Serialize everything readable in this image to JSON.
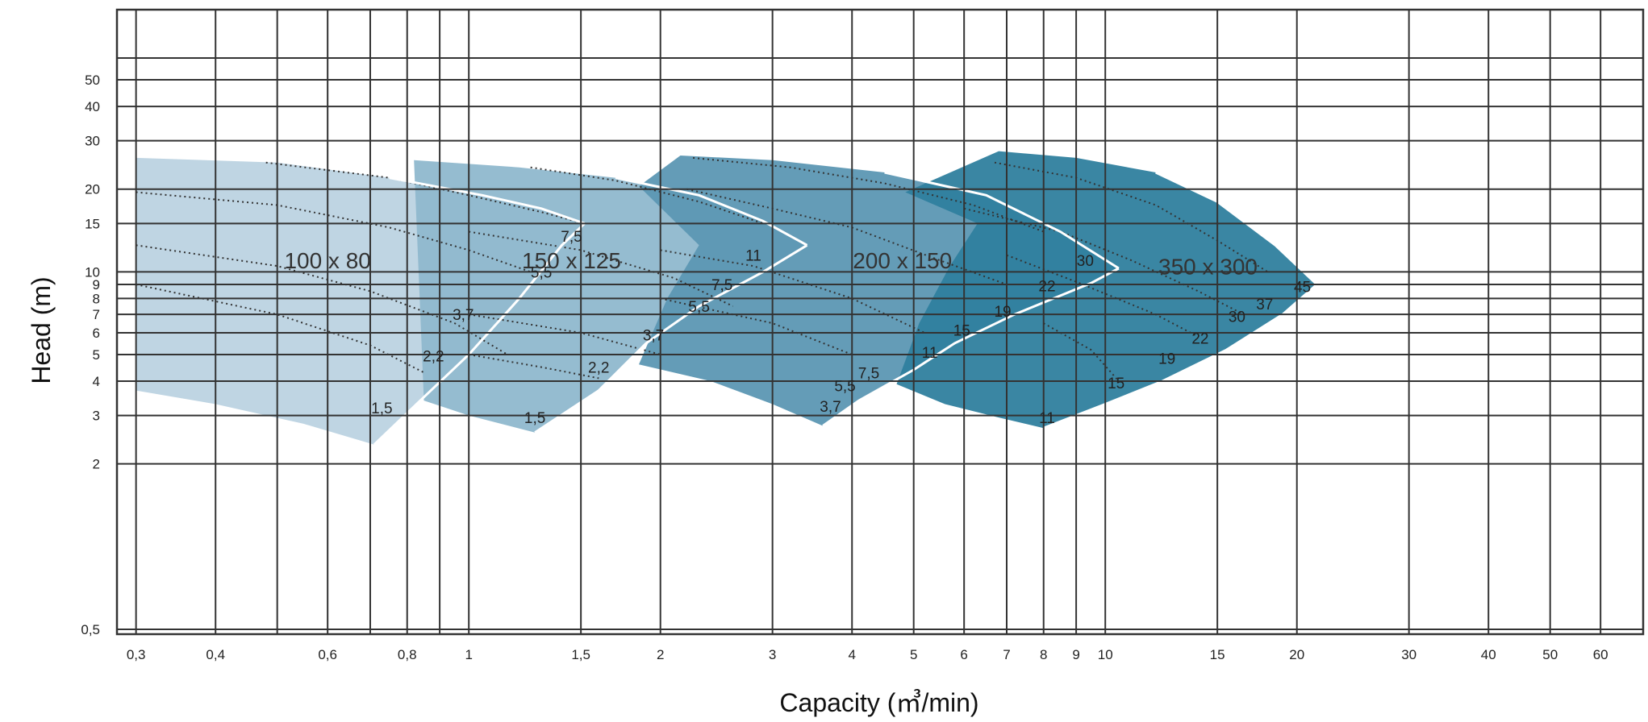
{
  "chart_data": {
    "type": "area",
    "title": "",
    "xlabel": "Capacity (㎥/min)",
    "ylabel": "Head (m)",
    "x_scale": "log",
    "y_scale": "log",
    "xlim": [
      0.28,
      70
    ],
    "ylim": [
      0.48,
      90
    ],
    "grid": true,
    "x_ticks": [
      {
        "value": 0.3,
        "label": "0,3"
      },
      {
        "value": 0.4,
        "label": "0,4"
      },
      {
        "value": 0.5,
        "label": ""
      },
      {
        "value": 0.6,
        "label": "0,6"
      },
      {
        "value": 0.7,
        "label": ""
      },
      {
        "value": 0.8,
        "label": "0,8"
      },
      {
        "value": 0.9,
        "label": ""
      },
      {
        "value": 1,
        "label": "1"
      },
      {
        "value": 1.5,
        "label": "1,5"
      },
      {
        "value": 2,
        "label": "2"
      },
      {
        "value": 3,
        "label": "3"
      },
      {
        "value": 4,
        "label": "4"
      },
      {
        "value": 5,
        "label": "5"
      },
      {
        "value": 6,
        "label": "6"
      },
      {
        "value": 7,
        "label": "7"
      },
      {
        "value": 8,
        "label": "8"
      },
      {
        "value": 9,
        "label": "9"
      },
      {
        "value": 10,
        "label": "10"
      },
      {
        "value": 15,
        "label": "15"
      },
      {
        "value": 20,
        "label": "20"
      },
      {
        "value": 30,
        "label": "30"
      },
      {
        "value": 40,
        "label": "40"
      },
      {
        "value": 50,
        "label": "50"
      },
      {
        "value": 60,
        "label": "60"
      }
    ],
    "y_ticks": [
      {
        "value": 0.5,
        "label": "0,5"
      },
      {
        "value": 2,
        "label": "2"
      },
      {
        "value": 3,
        "label": "3"
      },
      {
        "value": 4,
        "label": "4"
      },
      {
        "value": 5,
        "label": "5"
      },
      {
        "value": 6,
        "label": "6"
      },
      {
        "value": 7,
        "label": "7"
      },
      {
        "value": 8,
        "label": "8"
      },
      {
        "value": 9,
        "label": "9"
      },
      {
        "value": 10,
        "label": "10"
      },
      {
        "value": 15,
        "label": "15"
      },
      {
        "value": 20,
        "label": "20"
      },
      {
        "value": 30,
        "label": "30"
      },
      {
        "value": 40,
        "label": "40"
      },
      {
        "value": 50,
        "label": "50"
      },
      {
        "value": 60,
        "label": ""
      }
    ],
    "series": [
      {
        "name": "100 x 80",
        "color": "#bcd3e1",
        "label_at": [
          0.6,
          10.3
        ],
        "outline": [
          [
            0.3,
            26
          ],
          [
            0.5,
            25
          ],
          [
            0.75,
            22
          ],
          [
            1.05,
            19
          ],
          [
            1.3,
            17
          ],
          [
            1.52,
            15
          ],
          [
            1.4,
            12.5
          ],
          [
            1.2,
            8
          ],
          [
            1.0,
            5
          ],
          [
            0.85,
            3.5
          ],
          [
            0.71,
            2.35
          ],
          [
            0.55,
            2.8
          ],
          [
            0.4,
            3.3
          ],
          [
            0.3,
            3.7
          ]
        ],
        "curves": [
          {
            "points": [
              [
                0.48,
                25
              ],
              [
                0.75,
                22
              ],
              [
                1.0,
                19
              ],
              [
                1.3,
                16.5
              ],
              [
                1.52,
                15
              ]
            ]
          },
          {
            "points": [
              [
                0.3,
                19.5
              ],
              [
                0.5,
                17.5
              ],
              [
                0.75,
                14.5
              ],
              [
                1.0,
                12
              ],
              [
                1.25,
                10
              ]
            ]
          },
          {
            "points": [
              [
                0.3,
                12.5
              ],
              [
                0.5,
                10.5
              ],
              [
                0.7,
                8.5
              ],
              [
                0.95,
                6.5
              ],
              [
                1.15,
                5
              ]
            ]
          },
          {
            "points": [
              [
                0.3,
                9
              ],
              [
                0.5,
                7
              ],
              [
                0.7,
                5.4
              ],
              [
                0.85,
                4.3
              ]
            ]
          }
        ],
        "power_labels": [
          {
            "text": "7,5",
            "at": [
              1.45,
              13.5
            ]
          },
          {
            "text": "5,5",
            "at": [
              1.3,
              10
            ]
          },
          {
            "text": "3,7",
            "at": [
              0.98,
              7
            ]
          },
          {
            "text": "2,2",
            "at": [
              0.88,
              4.95
            ]
          },
          {
            "text": "1,5",
            "at": [
              0.73,
              3.2
            ]
          }
        ]
      },
      {
        "name": "150 x 125",
        "color": "#8fb8cd",
        "label_at": [
          1.45,
          10.3
        ],
        "outline": [
          [
            0.82,
            25.5
          ],
          [
            1.2,
            24
          ],
          [
            1.7,
            22
          ],
          [
            2.3,
            19
          ],
          [
            2.9,
            15.3
          ],
          [
            3.4,
            12.5
          ],
          [
            2.9,
            10
          ],
          [
            2.3,
            7.5
          ],
          [
            1.9,
            5.5
          ],
          [
            1.6,
            3.7
          ],
          [
            1.27,
            2.6
          ],
          [
            1.0,
            3
          ],
          [
            0.85,
            3.4
          ]
        ],
        "curves": [
          {
            "points": [
              [
                1.25,
                24
              ],
              [
                1.7,
                21.5
              ],
              [
                2.3,
                18
              ],
              [
                2.9,
                15
              ]
            ]
          },
          {
            "points": [
              [
                1.0,
                14
              ],
              [
                1.5,
                12
              ],
              [
                2.1,
                9.5
              ],
              [
                2.6,
                7.5
              ]
            ]
          },
          {
            "points": [
              [
                1.0,
                7
              ],
              [
                1.5,
                6
              ],
              [
                2.0,
                5
              ]
            ]
          },
          {
            "points": [
              [
                1.0,
                5
              ],
              [
                1.3,
                4.5
              ],
              [
                1.6,
                4.1
              ]
            ]
          }
        ],
        "power_labels": [
          {
            "text": "11",
            "at": [
              2.8,
              11.5
            ]
          },
          {
            "text": "7,5",
            "at": [
              2.5,
              9
            ]
          },
          {
            "text": "5,5",
            "at": [
              2.3,
              7.5
            ]
          },
          {
            "text": "3,7",
            "at": [
              1.95,
              5.9
            ]
          },
          {
            "text": "2,2",
            "at": [
              1.6,
              4.5
            ]
          },
          {
            "text": "1,5",
            "at": [
              1.27,
              2.95
            ]
          }
        ]
      },
      {
        "name": "200 x 150",
        "color": "#5c97b3",
        "label_at": [
          4.8,
          10.3
        ],
        "outline": [
          [
            2.15,
            26.5
          ],
          [
            3.0,
            25.5
          ],
          [
            4.5,
            23
          ],
          [
            6.5,
            19
          ],
          [
            8.5,
            14
          ],
          [
            10.5,
            10.3
          ],
          [
            9.5,
            9.1
          ],
          [
            7.2,
            7
          ],
          [
            5.8,
            5.5
          ],
          [
            5.0,
            4.4
          ],
          [
            4.1,
            3.4
          ],
          [
            3.6,
            2.75
          ],
          [
            3.0,
            3.3
          ],
          [
            2.4,
            4
          ],
          [
            1.85,
            4.6
          ],
          [
            2.05,
            8
          ],
          [
            2.3,
            12.5
          ],
          [
            1.85,
            20.5
          ]
        ],
        "curves": [
          {
            "points": [
              [
                2.25,
                26
              ],
              [
                3.2,
                24
              ],
              [
                4.5,
                21
              ],
              [
                6.2,
                17.5
              ],
              [
                8.0,
                14
              ]
            ]
          },
          {
            "points": [
              [
                2.2,
                20
              ],
              [
                3.0,
                17
              ],
              [
                4.0,
                14.5
              ],
              [
                5.5,
                11
              ],
              [
                7.0,
                9
              ]
            ]
          },
          {
            "points": [
              [
                2.0,
                12
              ],
              [
                2.8,
                10.5
              ],
              [
                4.0,
                8
              ],
              [
                5.2,
                6
              ]
            ]
          },
          {
            "points": [
              [
                2.0,
                8
              ],
              [
                3.0,
                6.5
              ],
              [
                4.0,
                5
              ]
            ]
          }
        ],
        "power_labels": [
          {
            "text": "30",
            "at": [
              9.3,
              11
            ]
          },
          {
            "text": "22",
            "at": [
              8.1,
              8.9
            ]
          },
          {
            "text": "19",
            "at": [
              6.9,
              7.2
            ]
          },
          {
            "text": "15",
            "at": [
              5.95,
              6.15
            ]
          },
          {
            "text": "11",
            "at": [
              5.3,
              5.1
            ]
          },
          {
            "text": "7,5",
            "at": [
              4.25,
              4.3
            ]
          },
          {
            "text": "5,5",
            "at": [
              3.9,
              3.85
            ]
          },
          {
            "text": "3,7",
            "at": [
              3.7,
              3.25
            ]
          }
        ]
      },
      {
        "name": "350 x 300",
        "color": "#2f7f9e",
        "label_at": [
          14.5,
          9.8
        ],
        "outline": [
          [
            6.8,
            27.5
          ],
          [
            9.0,
            26
          ],
          [
            12,
            23
          ],
          [
            15,
            18
          ],
          [
            18.5,
            12.5
          ],
          [
            21.5,
            9
          ],
          [
            19,
            7
          ],
          [
            15.5,
            5.2
          ],
          [
            12.3,
            4
          ],
          [
            10,
            3.3
          ],
          [
            8.0,
            2.7
          ],
          [
            6.8,
            2.95
          ],
          [
            5.6,
            3.3
          ],
          [
            4.7,
            3.9
          ],
          [
            5.1,
            6.5
          ],
          [
            5.7,
            10.5
          ],
          [
            6.3,
            15
          ],
          [
            4.85,
            19.5
          ]
        ],
        "curves": [
          {
            "points": [
              [
                6.7,
                25
              ],
              [
                9.0,
                22
              ],
              [
                12,
                17.5
              ],
              [
                15,
                13
              ],
              [
                18,
                10
              ]
            ]
          },
          {
            "points": [
              [
                6.0,
                17
              ],
              [
                8.5,
                14
              ],
              [
                11,
                11
              ],
              [
                14,
                8.5
              ],
              [
                16.5,
                7
              ]
            ]
          },
          {
            "points": [
              [
                7.0,
                11.5
              ],
              [
                9.0,
                9.2
              ],
              [
                12,
                7
              ],
              [
                14,
                5.8
              ]
            ]
          },
          {
            "points": [
              [
                8.0,
                6.5
              ],
              [
                9.5,
                5.2
              ],
              [
                10.5,
                4
              ]
            ]
          }
        ],
        "power_labels": [
          {
            "text": "45",
            "at": [
              20.4,
              8.85
            ]
          },
          {
            "text": "37",
            "at": [
              17.8,
              7.65
            ]
          },
          {
            "text": "30",
            "at": [
              16.1,
              6.9
            ]
          },
          {
            "text": "22",
            "at": [
              14.1,
              5.75
            ]
          },
          {
            "text": "19",
            "at": [
              12.5,
              4.85
            ]
          },
          {
            "text": "15",
            "at": [
              10.4,
              3.95
            ]
          },
          {
            "text": "11",
            "at": [
              8.1,
              2.95
            ]
          }
        ]
      }
    ]
  }
}
